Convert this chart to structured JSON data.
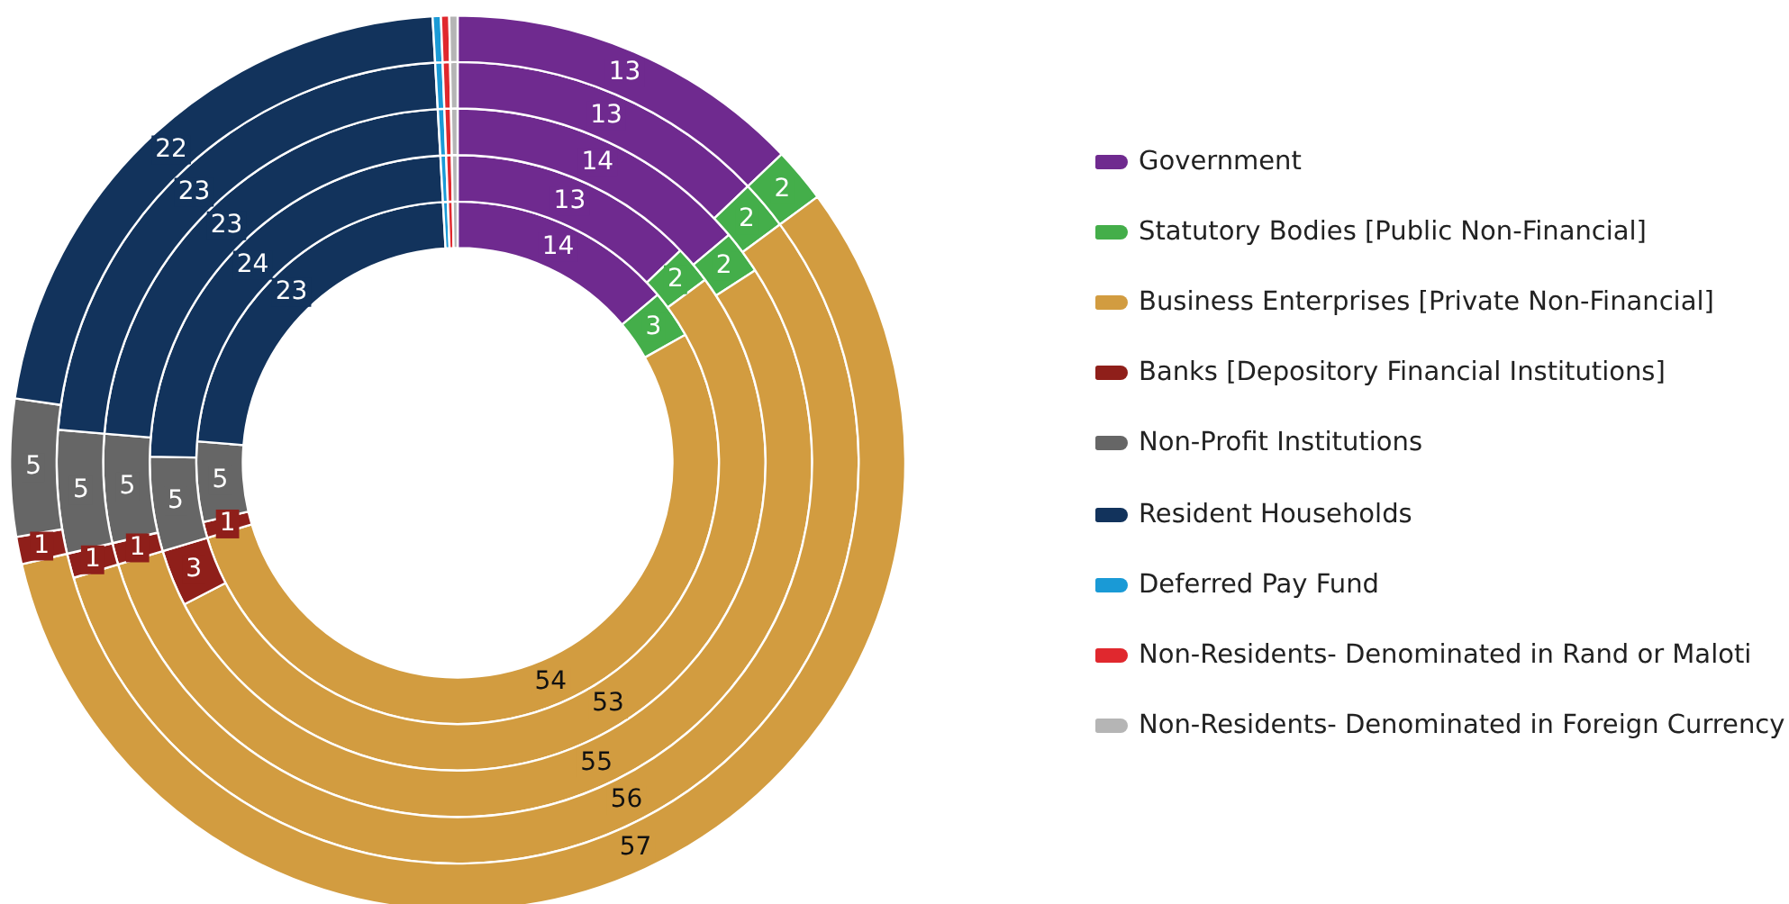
{
  "chart_data": {
    "type": "donut",
    "categories": [
      "Government",
      "Statutory Bodies [Public Non-Financial]",
      "Business Enterprises [Private Non-Financial]",
      "Banks [Depository Financial Institutions]",
      "Non-Profit Institutions",
      "Resident Households",
      "Deferred Pay Fund",
      "Non-Residents- Denominated in Rand or Maloti",
      "Non-Residents- Denominated in Foreign Currency"
    ],
    "colors": [
      "#6f2a8f",
      "#44ae4a",
      "#d29c40",
      "#8f1f1a",
      "#666666",
      "#12335c",
      "#1a9ad6",
      "#e0282e",
      "#b5b5b5"
    ],
    "series": [
      {
        "values": [
          14,
          3,
          54,
          1,
          5,
          23,
          0.3,
          0.3,
          0.3
        ],
        "value_labels": [
          "14",
          "3",
          "54",
          "1",
          "5",
          "23",
          null,
          null,
          null
        ]
      },
      {
        "values": [
          13,
          2,
          53,
          3,
          5,
          24,
          0.3,
          0.3,
          0.3
        ],
        "value_labels": [
          "13",
          "2",
          "53",
          "3",
          "5",
          "24",
          null,
          null,
          null
        ]
      },
      {
        "values": [
          14,
          2,
          55,
          1,
          5,
          23,
          0.3,
          0.3,
          0.3
        ],
        "value_labels": [
          "14",
          "2",
          "55",
          "1",
          "5",
          "23",
          null,
          null,
          null
        ]
      },
      {
        "values": [
          13,
          2,
          56,
          1,
          5,
          23,
          0.3,
          0.3,
          0.3
        ],
        "value_labels": [
          "13",
          "2",
          "56",
          "1",
          "5",
          "23",
          null,
          null,
          null
        ]
      },
      {
        "values": [
          13,
          2,
          57,
          1,
          5,
          22,
          0.3,
          0.3,
          0.3
        ],
        "value_labels": [
          "13",
          "2",
          "57",
          "1",
          "5",
          "22",
          null,
          null,
          null
        ]
      }
    ],
    "legend": "right"
  }
}
